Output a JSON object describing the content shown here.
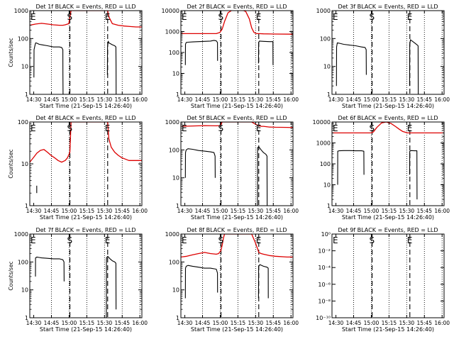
{
  "figure": {
    "x_tick_labels": [
      "14:30",
      "14:45",
      "15:00",
      "15:15",
      "15:30",
      "15:45",
      "16:00"
    ],
    "colors": {
      "events": "#000000",
      "lld": "#dd0000",
      "axes": "#000000"
    }
  },
  "chart_data": [
    {
      "type": "line",
      "title": "Det 1f BLACK = Events, RED = LLD",
      "xlabel": "Start Time (21-Sep-15 14:26:40)",
      "ylabel": "Counts/sec",
      "x_unit": "minutes after 14:26:40",
      "xlim": [
        0,
        95
      ],
      "log_y": true,
      "ylim": [
        1,
        1000
      ],
      "y_tick_labels": [
        "1",
        "10",
        "100",
        "1000"
      ],
      "dashed_markers_x": [
        34,
        66
      ],
      "marker_letters": [
        {
          "text": "E",
          "x": 0
        },
        {
          "text": "S",
          "x": 34
        },
        {
          "text": "E",
          "x": 66
        }
      ],
      "series": [
        {
          "color": "#dd0000",
          "x": [
            0,
            5,
            10,
            15,
            20,
            25,
            28,
            30,
            33,
            35,
            66,
            67,
            70,
            75,
            80,
            85,
            90,
            95
          ],
          "values": [
            300,
            330,
            350,
            330,
            310,
            300,
            300,
            310,
            340,
            1000,
            1000,
            600,
            340,
            300,
            280,
            270,
            260,
            260
          ]
        },
        {
          "color": "#000000",
          "x": [
            3.5,
            3.6,
            4.5,
            5,
            6,
            8,
            10,
            15,
            20,
            25,
            27,
            28,
            28.1,
            28.2
          ],
          "values": [
            4,
            40,
            60,
            70,
            68,
            62,
            60,
            55,
            50,
            50,
            48,
            40,
            5,
            1
          ]
        },
        {
          "color": "#000000",
          "x": [
            65.8,
            65.9,
            66.5,
            67,
            70,
            72,
            73,
            73.1,
            73.2
          ],
          "values": [
            5,
            50,
            80,
            70,
            60,
            55,
            50,
            10,
            1
          ]
        }
      ]
    },
    {
      "type": "line",
      "title": "Det 2f BLACK = Events, RED = LLD",
      "xlabel": "Start Time (21-Sep-15 14:26:40)",
      "ylabel": "",
      "x_unit": "minutes after 14:26:40",
      "xlim": [
        0,
        95
      ],
      "log_y": true,
      "ylim": [
        1,
        10000
      ],
      "y_tick_labels": [
        "1",
        "10",
        "100",
        "1000",
        "10000"
      ],
      "dashed_markers_x": [
        34,
        66
      ],
      "marker_letters": [
        {
          "text": "E",
          "x": 0
        },
        {
          "text": "S",
          "x": 34
        },
        {
          "text": "E",
          "x": 66
        }
      ],
      "series": [
        {
          "color": "#dd0000",
          "x": [
            0,
            10,
            20,
            30,
            33,
            35,
            37,
            40,
            45,
            50,
            55,
            58,
            60,
            62,
            64,
            66,
            70,
            80,
            95
          ],
          "values": [
            800,
            800,
            800,
            800,
            900,
            1300,
            3000,
            8000,
            12000,
            12000,
            9000,
            4000,
            1500,
            900,
            800,
            800,
            780,
            760,
            750
          ]
        },
        {
          "color": "#000000",
          "x": [
            3.8,
            3.9,
            4.5,
            6,
            10,
            15,
            20,
            25,
            28,
            30,
            31,
            31.1
          ],
          "values": [
            25,
            250,
            300,
            310,
            320,
            330,
            340,
            350,
            380,
            360,
            300,
            40
          ]
        },
        {
          "color": "#000000",
          "x": [
            65.8,
            65.9,
            66.5,
            70,
            75,
            78,
            78.1
          ],
          "values": [
            30,
            300,
            350,
            340,
            330,
            330,
            25
          ]
        }
      ]
    },
    {
      "type": "line",
      "title": "Det 3f BLACK = Events, RED = LLD",
      "xlabel": "Start Time (21-Sep-15 14:26:40)",
      "ylabel": "",
      "x_unit": "minutes after 14:26:40",
      "xlim": [
        0,
        95
      ],
      "log_y": true,
      "ylim": [
        1,
        1000
      ],
      "y_tick_labels": [
        "1",
        "10",
        "100",
        "1000"
      ],
      "dashed_markers_x": [
        34,
        66
      ],
      "marker_letters": [
        {
          "text": "E",
          "x": 0
        },
        {
          "text": "S",
          "x": 34
        },
        {
          "text": "E",
          "x": 66
        }
      ],
      "series": [
        {
          "color": "#000000",
          "x": [
            3.8,
            3.9,
            4.5,
            6,
            10,
            15,
            20,
            25,
            28,
            29,
            29.1
          ],
          "values": [
            2,
            50,
            70,
            68,
            62,
            58,
            55,
            50,
            48,
            40,
            5
          ]
        },
        {
          "color": "#000000",
          "x": [
            65.8,
            65.9,
            66.5,
            70,
            72,
            73,
            73.1
          ],
          "values": [
            2,
            60,
            90,
            70,
            60,
            55,
            1
          ]
        }
      ]
    },
    {
      "type": "line",
      "title": "Det 4f BLACK = Events, RED = LLD",
      "xlabel": "Start Time (21-Sep-15 14:26:40)",
      "ylabel": "Counts/sec",
      "x_unit": "minutes after 14:26:40",
      "xlim": [
        0,
        95
      ],
      "log_y": true,
      "ylim": [
        1,
        100
      ],
      "y_tick_labels": [
        "1",
        "10",
        "100"
      ],
      "dashed_markers_x": [
        34,
        66
      ],
      "marker_letters": [
        {
          "text": "E",
          "x": 0
        },
        {
          "text": "S",
          "x": 34
        },
        {
          "text": "E",
          "x": 66
        }
      ],
      "series": [
        {
          "color": "#dd0000",
          "x": [
            0,
            3,
            6,
            9,
            12,
            15,
            18,
            21,
            24,
            27,
            30,
            32,
            34,
            35,
            66,
            67,
            69,
            72,
            75,
            78,
            81,
            84,
            87,
            90,
            95
          ],
          "values": [
            11,
            14,
            18,
            21,
            22,
            19,
            16,
            14,
            12,
            11,
            12,
            14,
            19,
            100,
            100,
            40,
            25,
            19,
            16,
            14,
            13,
            12,
            12,
            12,
            12
          ]
        },
        {
          "color": "#000000",
          "x": [
            5.9,
            5.9
          ],
          "values": [
            2,
            3
          ]
        }
      ]
    },
    {
      "type": "line",
      "title": "Det 5f BLACK = Events, RED = LLD",
      "xlabel": "Start Time (21-Sep-15 14:26:40)",
      "ylabel": "",
      "x_unit": "minutes after 14:26:40",
      "xlim": [
        0,
        95
      ],
      "log_y": true,
      "ylim": [
        1,
        1000
      ],
      "y_tick_labels": [
        "1",
        "10",
        "100",
        "1000"
      ],
      "dashed_markers_x": [
        34,
        66
      ],
      "marker_letters": [
        {
          "text": "E",
          "x": 0
        },
        {
          "text": "S",
          "x": 34
        },
        {
          "text": "E",
          "x": 66
        }
      ],
      "series": [
        {
          "color": "#dd0000",
          "x": [
            0,
            10,
            20,
            30,
            33,
            34,
            35,
            60,
            64,
            66,
            68,
            70,
            75,
            80,
            90,
            95
          ],
          "values": [
            700,
            720,
            740,
            730,
            740,
            800,
            1000,
            1000,
            800,
            750,
            700,
            700,
            660,
            650,
            640,
            630
          ]
        },
        {
          "color": "#000000",
          "x": [
            3.8,
            3.9,
            4.5,
            6,
            10,
            15,
            20,
            25,
            28,
            29,
            29.1
          ],
          "values": [
            10,
            80,
            100,
            110,
            105,
            95,
            90,
            85,
            80,
            60,
            10
          ]
        },
        {
          "color": "#000000",
          "x": [
            64.9,
            65,
            66,
            68,
            70,
            72,
            73,
            73.1
          ],
          "values": [
            1,
            120,
            130,
            100,
            80,
            70,
            60,
            1
          ]
        }
      ]
    },
    {
      "type": "line",
      "title": "Det 6f BLACK = Events, RED = LLD",
      "xlabel": "Start Time (21-Sep-15 14:26:40)",
      "ylabel": "",
      "x_unit": "minutes after 14:26:40",
      "xlim": [
        0,
        95
      ],
      "log_y": true,
      "ylim": [
        1,
        10000
      ],
      "y_tick_labels": [
        "1",
        "10",
        "100",
        "1000",
        "10000"
      ],
      "dashed_markers_x": [
        34,
        66
      ],
      "marker_letters": [
        {
          "text": "E",
          "x": 0
        },
        {
          "text": "S",
          "x": 34
        },
        {
          "text": "E",
          "x": 66
        }
      ],
      "series": [
        {
          "color": "#dd0000",
          "x": [
            0,
            10,
            20,
            30,
            33,
            35,
            38,
            42,
            46,
            50,
            54,
            57,
            60,
            64,
            66,
            70,
            80,
            95
          ],
          "values": [
            3000,
            3000,
            3000,
            3000,
            3000,
            3300,
            5500,
            9000,
            10000,
            8500,
            6000,
            4500,
            3500,
            3000,
            3000,
            3000,
            3000,
            3000
          ]
        },
        {
          "color": "#000000",
          "x": [
            4.8,
            4.9,
            6,
            10,
            15,
            20,
            25,
            27,
            27.1
          ],
          "values": [
            10,
            400,
            420,
            430,
            430,
            420,
            420,
            400,
            30
          ]
        },
        {
          "color": "#000000",
          "x": [
            65.8,
            65.9,
            67,
            70,
            72,
            72.1
          ],
          "values": [
            30,
            400,
            430,
            420,
            420,
            2
          ]
        }
      ]
    },
    {
      "type": "line",
      "title": "Det 7f BLACK = Events, RED = LLD",
      "xlabel": "Start Time (21-Sep-15 14:26:40)",
      "ylabel": "Counts/sec",
      "x_unit": "minutes after 14:26:40",
      "xlim": [
        0,
        95
      ],
      "log_y": true,
      "ylim": [
        1,
        1000
      ],
      "y_tick_labels": [
        "1",
        "10",
        "100",
        "1000"
      ],
      "dashed_markers_x": [
        34,
        66
      ],
      "marker_letters": [
        {
          "text": "E",
          "x": 0
        },
        {
          "text": "S",
          "x": 34
        },
        {
          "text": "E",
          "x": 66
        }
      ],
      "series": [
        {
          "color": "#000000",
          "x": [
            4.8,
            4.9,
            6,
            8,
            10,
            15,
            20,
            25,
            28,
            29,
            29.1
          ],
          "values": [
            30,
            140,
            150,
            145,
            140,
            135,
            130,
            130,
            120,
            100,
            20
          ]
        },
        {
          "color": "#000000",
          "x": [
            64.9,
            65,
            66,
            68,
            70,
            72,
            73,
            73.1
          ],
          "values": [
            1,
            140,
            160,
            130,
            110,
            100,
            90,
            2
          ]
        }
      ]
    },
    {
      "type": "line",
      "title": "Det 8f BLACK = Events, RED = LLD",
      "xlabel": "Start Time (21-Sep-15 14:26:40)",
      "ylabel": "",
      "x_unit": "minutes after 14:26:40",
      "xlim": [
        0,
        95
      ],
      "log_y": true,
      "ylim": [
        1,
        1000
      ],
      "y_tick_labels": [
        "1",
        "10",
        "100",
        "1000"
      ],
      "dashed_markers_x": [
        34,
        66
      ],
      "marker_letters": [
        {
          "text": "E",
          "x": 0
        },
        {
          "text": "S",
          "x": 34
        },
        {
          "text": "E",
          "x": 66
        }
      ],
      "series": [
        {
          "color": "#dd0000",
          "x": [
            0,
            5,
            10,
            15,
            20,
            25,
            30,
            32,
            34,
            35,
            36,
            37,
            60,
            63,
            65,
            66,
            68,
            70,
            75,
            80,
            90,
            95
          ],
          "values": [
            150,
            160,
            180,
            200,
            220,
            200,
            190,
            200,
            260,
            400,
            700,
            1000,
            1000,
            500,
            300,
            220,
            200,
            190,
            170,
            160,
            150,
            150
          ]
        },
        {
          "color": "#000000",
          "x": [
            3.8,
            3.9,
            4.5,
            6,
            10,
            15,
            20,
            25,
            30,
            31,
            31.1
          ],
          "values": [
            5,
            60,
            70,
            75,
            70,
            65,
            60,
            60,
            55,
            40,
            8
          ]
        },
        {
          "color": "#000000",
          "x": [
            65.8,
            65.9,
            67,
            70,
            73,
            74,
            74.1
          ],
          "values": [
            5,
            70,
            80,
            70,
            65,
            60,
            5
          ]
        }
      ]
    },
    {
      "type": "line",
      "title": "Det 9f BLACK = Events, RED = LLD",
      "xlabel": "Start Time (21-Sep-15 14:26:40)",
      "ylabel": "",
      "x_unit": "minutes after 14:26:40",
      "xlim": [
        0,
        95
      ],
      "log_y": true,
      "ylim": [
        1e-10,
        1
      ],
      "y_tick_labels": [
        "10⁻¹⁰",
        "10⁻⁸",
        "10⁻⁶",
        "10⁻⁴",
        "10⁻²",
        "10⁰"
      ],
      "y_tick_values": [
        1e-10,
        1e-08,
        1e-06,
        0.0001,
        0.01,
        1
      ],
      "dashed_markers_x": [
        34,
        66
      ],
      "marker_letters": [
        {
          "text": "E",
          "x": 0
        },
        {
          "text": "S",
          "x": 34
        },
        {
          "text": "E",
          "x": 66
        }
      ],
      "series": []
    }
  ]
}
